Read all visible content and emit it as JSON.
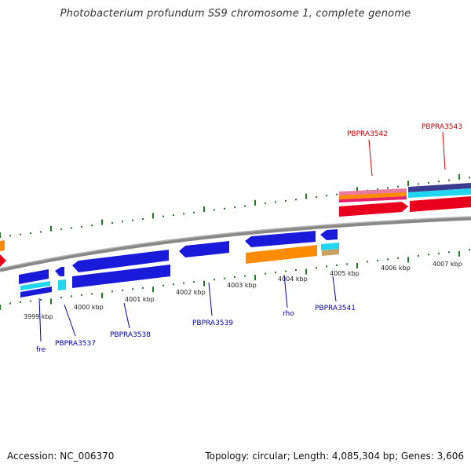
{
  "title": "Photobacterium profundum SS9 chromosome 1, complete genome",
  "footer": {
    "accession": "Accession: NC_006370",
    "summary": "Topology: circular; Length: 4,085,304 bp; Genes: 3,606"
  },
  "colors": {
    "backbone": "#808080",
    "tick": "#1f7a1f",
    "forward_label": "#cc0000",
    "reverse_label": "#0000aa",
    "gene_blue": "#1a1adb",
    "gene_red": "#e8001c",
    "gene_orange": "#ff8c00",
    "gene_cyan": "#22d6f0",
    "gene_navy": "#3b3b8f",
    "gene_tan": "#c8a060",
    "gene_pink": "#e87aa0"
  },
  "ticks": [
    {
      "label": "3999 kbp"
    },
    {
      "label": "4000 kbp"
    },
    {
      "label": "4001 kbp"
    },
    {
      "label": "4002 kbp"
    },
    {
      "label": "4003 kbp"
    },
    {
      "label": "4004 kbp"
    },
    {
      "label": "4005 kbp"
    },
    {
      "label": "4006 kbp"
    },
    {
      "label": "4007 kbp"
    }
  ],
  "gene_labels": [
    {
      "label": "fre",
      "strand": "reverse"
    },
    {
      "label": "PBPRA3537",
      "strand": "reverse"
    },
    {
      "label": "PBPRA3538",
      "strand": "reverse"
    },
    {
      "label": "PBPRA3539",
      "strand": "reverse"
    },
    {
      "label": "rho",
      "strand": "reverse"
    },
    {
      "label": "PBPRA3541",
      "strand": "reverse"
    },
    {
      "label": "PBPRA3542",
      "strand": "forward"
    },
    {
      "label": "PBPRA3543",
      "strand": "forward"
    }
  ]
}
